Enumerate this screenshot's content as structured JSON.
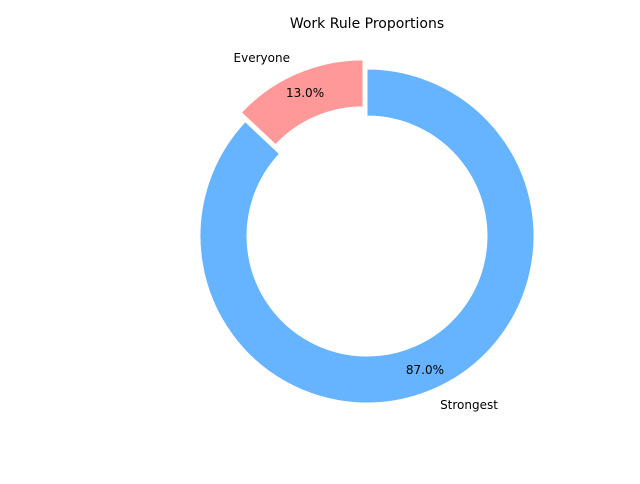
{
  "chart_data": {
    "type": "pie",
    "donut": true,
    "title": "Work Rule Proportions",
    "slices": [
      {
        "label": "Everyone",
        "value": 13.0,
        "pct_label": "13.0%",
        "color": "#ff9999",
        "exploded": true
      },
      {
        "label": "Strongest",
        "value": 87.0,
        "pct_label": "87.0%",
        "color": "#66b3ff",
        "exploded": false
      }
    ],
    "start_angle_deg": 90,
    "direction": "counterclockwise",
    "legend": "none"
  }
}
